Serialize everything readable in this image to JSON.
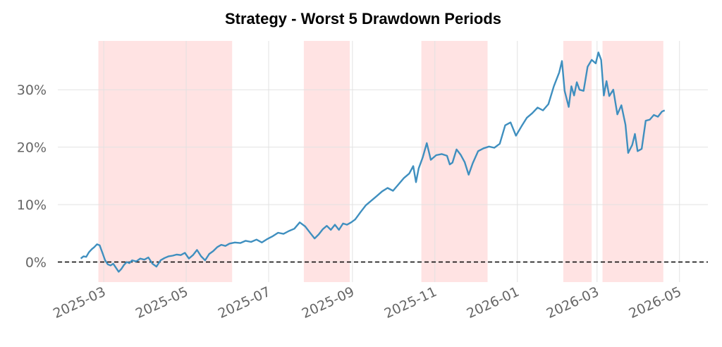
{
  "chart_data": {
    "type": "line",
    "title": "Strategy - Worst 5 Drawdown Periods",
    "xlabel": "",
    "ylabel": "",
    "y_unit": "%",
    "ylim": [
      -3.5,
      38.5
    ],
    "xlim": [
      "2025-01-26",
      "2026-05-22"
    ],
    "y_ticks": [
      0,
      10,
      20,
      30
    ],
    "y_tick_labels": [
      "0%",
      "10%",
      "20%",
      "30%"
    ],
    "x_ticks": [
      "2025-03-01",
      "2025-05-01",
      "2025-07-01",
      "2025-09-01",
      "2025-11-01",
      "2026-01-01",
      "2026-03-01",
      "2026-05-01"
    ],
    "x_tick_labels": [
      "2025-03",
      "2025-05",
      "2025-07",
      "2025-09",
      "2025-11",
      "2026-01",
      "2026-03",
      "2026-05"
    ],
    "grid": true,
    "baseline": 0,
    "drawdown_periods": [
      {
        "start": "2025-02-25",
        "end": "2025-06-04"
      },
      {
        "start": "2025-07-27",
        "end": "2025-08-30"
      },
      {
        "start": "2025-10-22",
        "end": "2025-12-10"
      },
      {
        "start": "2026-02-04",
        "end": "2026-02-25"
      },
      {
        "start": "2026-03-05",
        "end": "2026-04-19"
      }
    ],
    "series": [
      {
        "colors": "#3f8fbf",
        "points": [
          [
            "2025-02-12",
            0.6
          ],
          [
            "2025-02-14",
            1.0
          ],
          [
            "2025-02-16",
            0.9
          ],
          [
            "2025-02-18",
            1.7
          ],
          [
            "2025-02-20",
            2.2
          ],
          [
            "2025-02-22",
            2.6
          ],
          [
            "2025-02-24",
            3.1
          ],
          [
            "2025-02-26",
            2.9
          ],
          [
            "2025-02-28",
            1.6
          ],
          [
            "2025-03-02",
            0.3
          ],
          [
            "2025-03-04",
            -0.4
          ],
          [
            "2025-03-06",
            -0.6
          ],
          [
            "2025-03-08",
            -0.3
          ],
          [
            "2025-03-10",
            -1.0
          ],
          [
            "2025-03-12",
            -1.7
          ],
          [
            "2025-03-14",
            -1.2
          ],
          [
            "2025-03-16",
            -0.5
          ],
          [
            "2025-03-18",
            0.0
          ],
          [
            "2025-03-20",
            -0.2
          ],
          [
            "2025-03-22",
            0.3
          ],
          [
            "2025-03-25",
            0.1
          ],
          [
            "2025-03-28",
            0.6
          ],
          [
            "2025-03-31",
            0.4
          ],
          [
            "2025-04-03",
            0.8
          ],
          [
            "2025-04-06",
            -0.3
          ],
          [
            "2025-04-09",
            -0.8
          ],
          [
            "2025-04-12",
            0.3
          ],
          [
            "2025-04-15",
            0.7
          ],
          [
            "2025-04-18",
            1.0
          ],
          [
            "2025-04-21",
            1.1
          ],
          [
            "2025-04-24",
            1.3
          ],
          [
            "2025-04-27",
            1.2
          ],
          [
            "2025-04-30",
            1.6
          ],
          [
            "2025-05-03",
            0.6
          ],
          [
            "2025-05-06",
            1.2
          ],
          [
            "2025-05-09",
            2.1
          ],
          [
            "2025-05-12",
            1.0
          ],
          [
            "2025-05-15",
            0.3
          ],
          [
            "2025-05-18",
            1.4
          ],
          [
            "2025-05-21",
            1.9
          ],
          [
            "2025-05-24",
            2.6
          ],
          [
            "2025-05-27",
            3.0
          ],
          [
            "2025-05-30",
            2.8
          ],
          [
            "2025-06-02",
            3.2
          ],
          [
            "2025-06-06",
            3.4
          ],
          [
            "2025-06-10",
            3.3
          ],
          [
            "2025-06-14",
            3.7
          ],
          [
            "2025-06-18",
            3.5
          ],
          [
            "2025-06-22",
            3.9
          ],
          [
            "2025-06-26",
            3.4
          ],
          [
            "2025-06-30",
            4.0
          ],
          [
            "2025-07-04",
            4.5
          ],
          [
            "2025-07-08",
            5.1
          ],
          [
            "2025-07-12",
            4.9
          ],
          [
            "2025-07-16",
            5.4
          ],
          [
            "2025-07-20",
            5.8
          ],
          [
            "2025-07-24",
            6.9
          ],
          [
            "2025-07-28",
            6.2
          ],
          [
            "2025-08-01",
            5.0
          ],
          [
            "2025-08-04",
            4.1
          ],
          [
            "2025-08-07",
            4.8
          ],
          [
            "2025-08-10",
            5.7
          ],
          [
            "2025-08-13",
            6.3
          ],
          [
            "2025-08-16",
            5.6
          ],
          [
            "2025-08-19",
            6.5
          ],
          [
            "2025-08-22",
            5.6
          ],
          [
            "2025-08-25",
            6.7
          ],
          [
            "2025-08-28",
            6.5
          ],
          [
            "2025-08-31",
            6.9
          ],
          [
            "2025-09-03",
            7.4
          ],
          [
            "2025-09-07",
            8.7
          ],
          [
            "2025-09-11",
            9.9
          ],
          [
            "2025-09-15",
            10.7
          ],
          [
            "2025-09-19",
            11.5
          ],
          [
            "2025-09-23",
            12.3
          ],
          [
            "2025-09-27",
            12.9
          ],
          [
            "2025-10-01",
            12.4
          ],
          [
            "2025-10-05",
            13.5
          ],
          [
            "2025-10-09",
            14.6
          ],
          [
            "2025-10-13",
            15.4
          ],
          [
            "2025-10-16",
            16.7
          ],
          [
            "2025-10-18",
            13.9
          ],
          [
            "2025-10-20",
            16.3
          ],
          [
            "2025-10-23",
            18.2
          ],
          [
            "2025-10-26",
            20.7
          ],
          [
            "2025-10-29",
            17.8
          ],
          [
            "2025-11-02",
            18.6
          ],
          [
            "2025-11-06",
            18.8
          ],
          [
            "2025-11-10",
            18.5
          ],
          [
            "2025-11-12",
            17.0
          ],
          [
            "2025-11-14",
            17.3
          ],
          [
            "2025-11-17",
            19.6
          ],
          [
            "2025-11-20",
            18.7
          ],
          [
            "2025-11-23",
            17.4
          ],
          [
            "2025-11-26",
            15.2
          ],
          [
            "2025-11-29",
            17.2
          ],
          [
            "2025-12-03",
            19.3
          ],
          [
            "2025-12-07",
            19.8
          ],
          [
            "2025-12-11",
            20.1
          ],
          [
            "2025-12-15",
            19.9
          ],
          [
            "2025-12-19",
            20.6
          ],
          [
            "2025-12-23",
            23.8
          ],
          [
            "2025-12-27",
            24.3
          ],
          [
            "2025-12-31",
            22.0
          ],
          [
            "2026-01-04",
            23.6
          ],
          [
            "2026-01-08",
            25.1
          ],
          [
            "2026-01-12",
            25.9
          ],
          [
            "2026-01-16",
            26.9
          ],
          [
            "2026-01-20",
            26.4
          ],
          [
            "2026-01-24",
            27.5
          ],
          [
            "2026-01-28",
            30.6
          ],
          [
            "2026-02-01",
            33.0
          ],
          [
            "2026-02-03",
            35.0
          ],
          [
            "2026-02-05",
            29.8
          ],
          [
            "2026-02-08",
            27.0
          ],
          [
            "2026-02-10",
            30.6
          ],
          [
            "2026-02-12",
            29.0
          ],
          [
            "2026-02-14",
            31.3
          ],
          [
            "2026-02-16",
            30.0
          ],
          [
            "2026-02-19",
            29.8
          ],
          [
            "2026-02-22",
            34.0
          ],
          [
            "2026-02-25",
            35.2
          ],
          [
            "2026-02-28",
            34.6
          ],
          [
            "2026-03-02",
            36.5
          ],
          [
            "2026-03-04",
            35.2
          ],
          [
            "2026-03-06",
            29.0
          ],
          [
            "2026-03-08",
            31.5
          ],
          [
            "2026-03-10",
            28.9
          ],
          [
            "2026-03-13",
            30.0
          ],
          [
            "2026-03-16",
            25.7
          ],
          [
            "2026-03-19",
            27.3
          ],
          [
            "2026-03-22",
            23.9
          ],
          [
            "2026-03-24",
            19.0
          ],
          [
            "2026-03-27",
            20.4
          ],
          [
            "2026-03-29",
            22.3
          ],
          [
            "2026-03-31",
            19.3
          ],
          [
            "2026-04-03",
            19.7
          ],
          [
            "2026-04-06",
            24.6
          ],
          [
            "2026-04-09",
            24.8
          ],
          [
            "2026-04-12",
            25.6
          ],
          [
            "2026-04-15",
            25.3
          ],
          [
            "2026-04-18",
            26.2
          ],
          [
            "2026-04-20",
            26.4
          ]
        ]
      }
    ]
  }
}
